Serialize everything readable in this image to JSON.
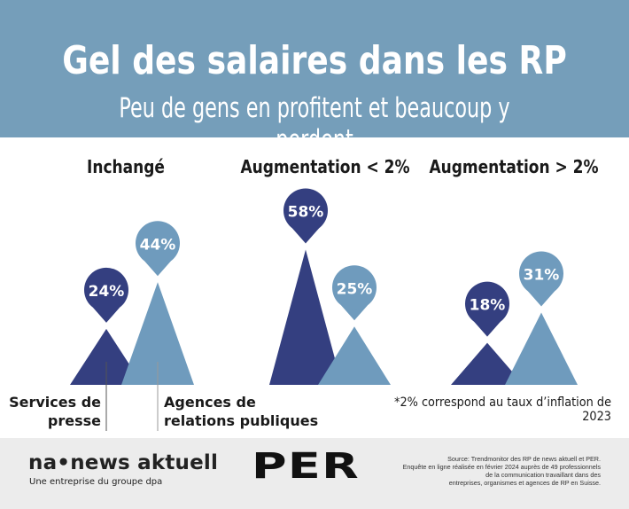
{
  "header": {
    "title": "Gel des salaires dans les RP",
    "subtitle": "Peu de gens en profitent et beaucoup y perdent"
  },
  "chart_data": {
    "type": "bar",
    "style": "triangle peaks with pin labels",
    "categories": [
      "Inchangé",
      "Augmentation < 2%",
      "Augmentation > 2%"
    ],
    "series": [
      {
        "name": "Services de presse",
        "values": [
          24,
          58,
          18
        ],
        "labels": [
          "24%",
          "58%",
          "18%"
        ],
        "color": "#343f80"
      },
      {
        "name": "Agences de relations publiques",
        "values": [
          44,
          25,
          31
        ],
        "labels": [
          "44%",
          "25%",
          "31%"
        ],
        "color": "#6f9bbd"
      }
    ],
    "legend_labels": {
      "series_0_line1": "Services de",
      "series_0_line2": "presse",
      "series_1_line1": "Agences de",
      "series_1_line2": "relations publiques"
    },
    "unit": "%",
    "note": "*2% correspond au taux d’inflation de 2023"
  },
  "footer": {
    "na_logo": "na•news aktuell",
    "na_tagline": "Une entreprise du groupe dpa",
    "per_logo": "PER",
    "source_lines": [
      "Source: Trendmonitor des RP de news aktuell et PER.",
      "Enquête en ligne réalisée en février 2024 auprès de 49 professionnels",
      "de la communication travaillant dans des",
      "entreprises, organismes et agences de RP en Suisse."
    ]
  },
  "colors": {
    "header": "#759eba",
    "dark": "#343f80",
    "light": "#6f9bbd",
    "footer": "#ececec"
  }
}
